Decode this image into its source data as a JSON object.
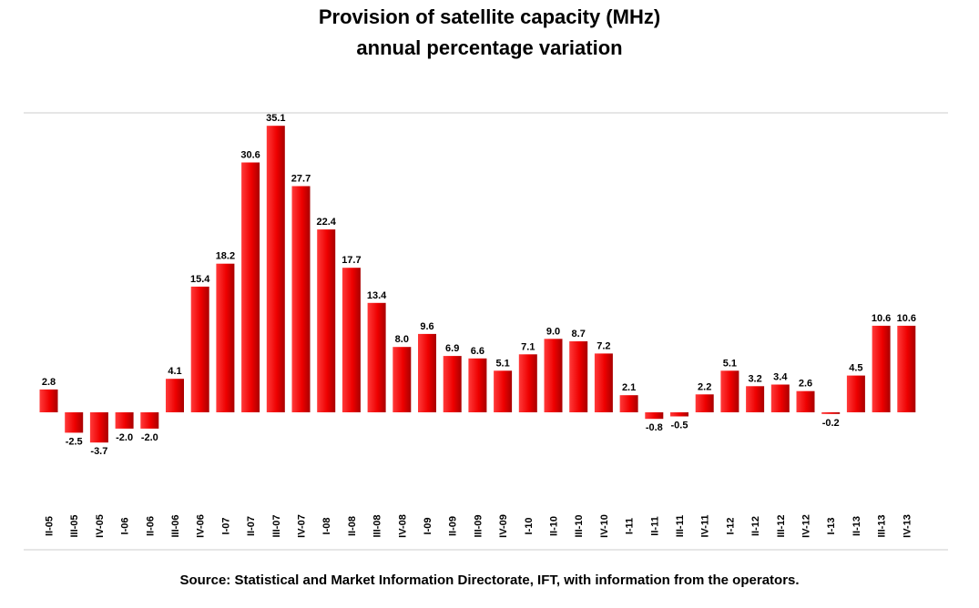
{
  "chart_data": {
    "type": "bar",
    "title": [
      "Provision of satellite capacity (MHz)",
      "annual percentage variation"
    ],
    "xlabel": "",
    "ylabel": "",
    "categories": [
      "II-05",
      "III-05",
      "IV-05",
      "I-06",
      "II-06",
      "III-06",
      "IV-06",
      "I-07",
      "II-07",
      "III-07",
      "IV-07",
      "I-08",
      "II-08",
      "III-08",
      "IV-08",
      "I-09",
      "II-09",
      "III-09",
      "IV-09",
      "I-10",
      "II-10",
      "III-10",
      "IV-10",
      "I-11",
      "II-11",
      "III-11",
      "IV-11",
      "I-12",
      "II-12",
      "III-12",
      "IV-12",
      "I-13",
      "II-13",
      "III-13",
      "IV-13"
    ],
    "values": [
      2.8,
      -2.5,
      -3.7,
      -2.0,
      -2.0,
      4.1,
      15.4,
      18.2,
      30.6,
      35.1,
      27.7,
      22.4,
      17.7,
      13.4,
      8.0,
      9.6,
      6.9,
      6.6,
      5.1,
      7.1,
      9.0,
      8.7,
      7.2,
      2.1,
      -0.8,
      -0.5,
      2.2,
      5.1,
      3.2,
      3.4,
      2.6,
      -0.2,
      4.5,
      10.6,
      10.6
    ],
    "value_labels": [
      "2.8",
      "-2.5",
      "-3.7",
      "-2.0",
      "-2.0",
      "4.1",
      "15.4",
      "18.2",
      "30.6",
      "35.1",
      "27.7",
      "22.4",
      "17.7",
      "13.4",
      "8.0",
      "9.6",
      "6.9",
      "6.6",
      "5.1",
      "7.1",
      "9.0",
      "8.7",
      "7.2",
      "2.1",
      "-0.8",
      "-0.5",
      "2.2",
      "5.1",
      "3.2",
      "3.4",
      "2.6",
      "-0.2",
      "4.5",
      "10.6",
      "10.6"
    ],
    "bar_color": "#ee0000",
    "ylim": [
      -13,
      36
    ],
    "grid": false,
    "legend": "none"
  },
  "source": "Source: Statistical and Market Information Directorate, IFT, with information from the operators."
}
